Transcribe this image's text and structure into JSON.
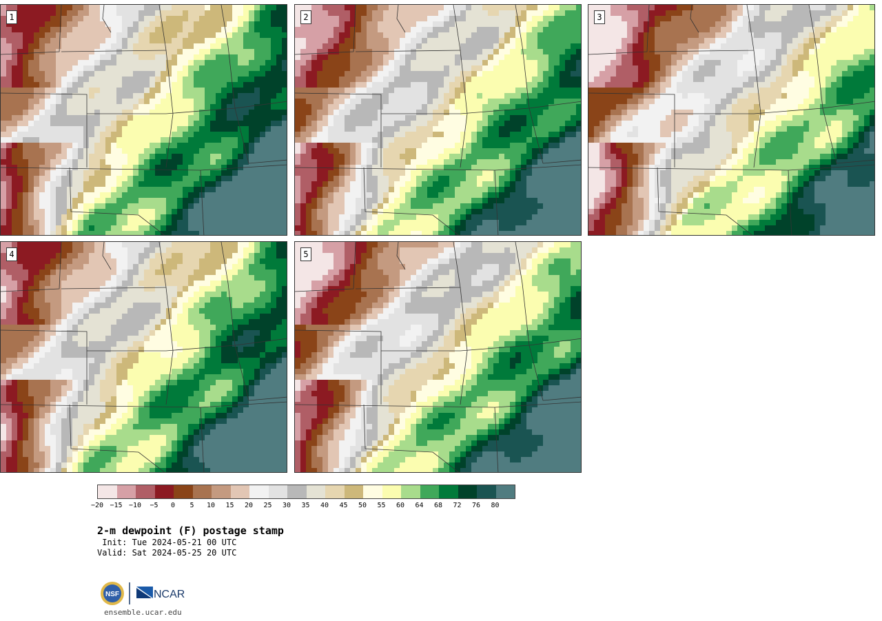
{
  "title": "2-m dewpoint (F) postage stamp",
  "init": " Init: Tue 2024-05-21 00 UTC",
  "valid": "Valid: Sat 2024-05-25 20 UTC",
  "url": "ensemble.ucar.edu",
  "logos": {
    "nsf": "NSF",
    "ncar": "NCAR"
  },
  "panels": [
    {
      "label": "1",
      "variant": 1
    },
    {
      "label": "2",
      "variant": 2
    },
    {
      "label": "3",
      "variant": 3
    },
    {
      "label": "4",
      "variant": 4
    },
    {
      "label": "5",
      "variant": 5
    }
  ],
  "colorbar": {
    "colors": [
      "#f4e6e6",
      "#d6a0a6",
      "#b05e66",
      "#8c1a22",
      "#8a4418",
      "#a87350",
      "#c49a80",
      "#e2c6b4",
      "#f2f2f2",
      "#e2e2e2",
      "#b8b8b8",
      "#e4e2d4",
      "#e6d6b0",
      "#cdb87a",
      "#fffde2",
      "#fbfdb0",
      "#a8dc8c",
      "#40a85a",
      "#007a3a",
      "#00422a",
      "#1a5452",
      "#507c80"
    ],
    "ticks": [
      "−20",
      "−15",
      "−10",
      "−5",
      "0",
      "5",
      "10",
      "15",
      "20",
      "25",
      "30",
      "35",
      "40",
      "45",
      "50",
      "55",
      "60",
      "64",
      "68",
      "72",
      "76",
      "80"
    ]
  }
}
